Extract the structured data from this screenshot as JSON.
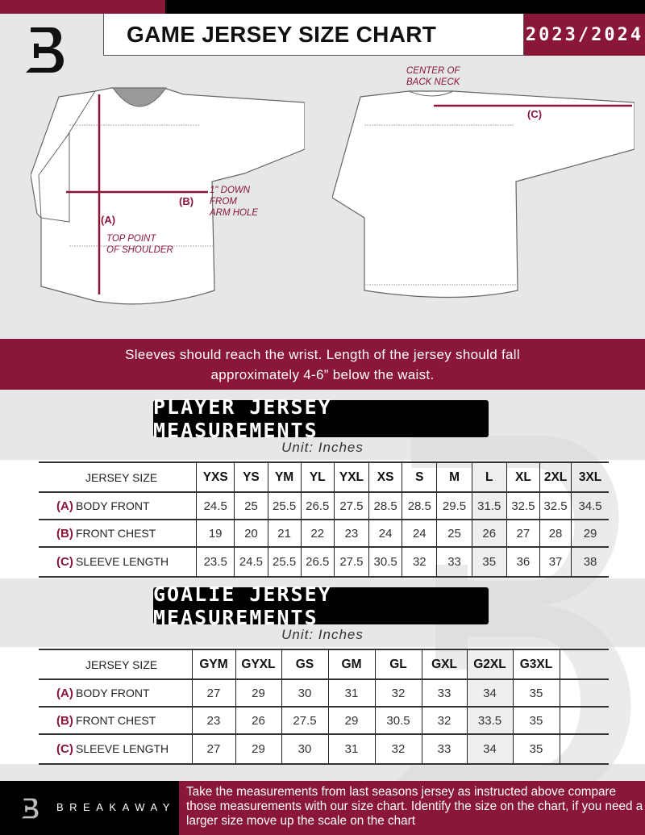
{
  "header": {
    "title": "GAME JERSEY SIZE CHART",
    "season": "2023/2024"
  },
  "diagram": {
    "front_labels": {
      "a": "(A)",
      "b": "(B)",
      "a_note_1": "TOP POINT",
      "a_note_2": "OF SHOULDER",
      "b_note_1": "1\" DOWN",
      "b_note_2": "FROM",
      "b_note_3": "ARM HOLE"
    },
    "back_labels": {
      "c": "(C)",
      "c_note_1": "CENTER OF",
      "c_note_2": "BACK NECK"
    }
  },
  "banner": {
    "line1": "Sleeves should reach the wrist. Length of the jersey should fall",
    "line2": "approximately 4-6” below the waist."
  },
  "player": {
    "heading": "PLAYER JERSEY MEASUREMENTS",
    "unit": "Unit: Inches",
    "size_label": "JERSEY SIZE",
    "sizes": [
      "YXS",
      "YS",
      "YM",
      "YL",
      "YXL",
      "XS",
      "S",
      "M",
      "L",
      "XL",
      "2XL",
      "3XL"
    ],
    "rows": [
      {
        "key": "(A)",
        "label": "BODY FRONT",
        "values": [
          "24.5",
          "25",
          "25.5",
          "26.5",
          "27.5",
          "28.5",
          "28.5",
          "29.5",
          "31.5",
          "32.5",
          "32.5",
          "34.5"
        ]
      },
      {
        "key": "(B)",
        "label": "FRONT CHEST",
        "values": [
          "19",
          "20",
          "21",
          "22",
          "23",
          "24",
          "24",
          "25",
          "26",
          "27",
          "28",
          "29"
        ]
      },
      {
        "key": "(C)",
        "label": "SLEEVE LENGTH",
        "values": [
          "23.5",
          "24.5",
          "25.5",
          "26.5",
          "27.5",
          "30.5",
          "32",
          "33",
          "35",
          "36",
          "37",
          "38"
        ]
      }
    ]
  },
  "goalie": {
    "heading": "GOALIE JERSEY MEASUREMENTS",
    "unit": "Unit: Inches",
    "size_label": "JERSEY SIZE",
    "sizes": [
      "GYM",
      "GYXL",
      "GS",
      "GM",
      "GL",
      "GXL",
      "G2XL",
      "G3XL",
      ""
    ],
    "rows": [
      {
        "key": "(A)",
        "label": "BODY FRONT",
        "values": [
          "27",
          "29",
          "30",
          "31",
          "32",
          "33",
          "34",
          "35",
          ""
        ]
      },
      {
        "key": "(B)",
        "label": "FRONT CHEST",
        "values": [
          "23",
          "26",
          "27.5",
          "29",
          "30.5",
          "32",
          "33.5",
          "35",
          ""
        ]
      },
      {
        "key": "(C)",
        "label": "SLEEVE LENGTH",
        "values": [
          "27",
          "29",
          "30",
          "31",
          "32",
          "33",
          "34",
          "35",
          ""
        ]
      }
    ]
  },
  "footer": {
    "brand": "BREAKAWAY",
    "text": "Take the measurements from last seasons jersey as instructed above compare those measurements  with our size chart. Identify the size on the chart, if you need a larger size move up the scale on the chart"
  },
  "colors": {
    "accent": "#8a1638",
    "dark": "#000000",
    "background": "#e6e7e8"
  }
}
